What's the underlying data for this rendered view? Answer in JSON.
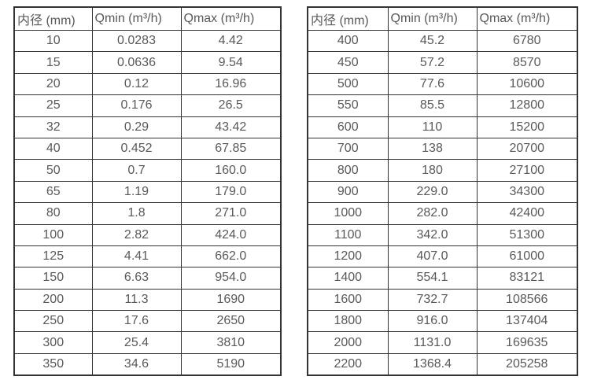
{
  "page": {
    "background_color": "#ffffff",
    "text_color": "#595959",
    "border_color": "#333333"
  },
  "left_table": {
    "headers": [
      "内径 (mm)",
      "Qmin (m³/h)",
      "Qmax (m³/h)"
    ],
    "rows": [
      [
        "10",
        "0.0283",
        "4.42"
      ],
      [
        "15",
        "0.0636",
        "9.54"
      ],
      [
        "20",
        "0.12",
        "16.96"
      ],
      [
        "25",
        "0.176",
        "26.5"
      ],
      [
        "32",
        "0.29",
        "43.42"
      ],
      [
        "40",
        "0.452",
        "67.85"
      ],
      [
        "50",
        "0.7",
        "160.0"
      ],
      [
        "65",
        "1.19",
        "179.0"
      ],
      [
        "80",
        "1.8",
        "271.0"
      ],
      [
        "100",
        "2.82",
        "424.0"
      ],
      [
        "125",
        "4.41",
        "662.0"
      ],
      [
        "150",
        "6.63",
        "954.0"
      ],
      [
        "200",
        "11.3",
        "1690"
      ],
      [
        "250",
        "17.6",
        "2650"
      ],
      [
        "300",
        "25.4",
        "3810"
      ],
      [
        "350",
        "34.6",
        "5190"
      ]
    ]
  },
  "right_table": {
    "headers": [
      "内径 (mm)",
      "Qmin (m³/h)",
      "Qmax (m³/h)"
    ],
    "rows": [
      [
        "400",
        "45.2",
        "6780"
      ],
      [
        "450",
        "57.2",
        "8570"
      ],
      [
        "500",
        "77.6",
        "10600"
      ],
      [
        "550",
        "85.5",
        "12800"
      ],
      [
        "600",
        "110",
        "15200"
      ],
      [
        "700",
        "138",
        "20700"
      ],
      [
        "800",
        "180",
        "27100"
      ],
      [
        "900",
        "229.0",
        "34300"
      ],
      [
        "1000",
        "282.0",
        "42400"
      ],
      [
        "1100",
        "342.0",
        "51300"
      ],
      [
        "1200",
        "407.0",
        "61000"
      ],
      [
        "1400",
        "554.1",
        "83121"
      ],
      [
        "1600",
        "732.7",
        "108566"
      ],
      [
        "1800",
        "916.0",
        "137404"
      ],
      [
        "2000",
        "1131.0",
        "169635"
      ],
      [
        "2200",
        "1368.4",
        "205258"
      ]
    ]
  }
}
